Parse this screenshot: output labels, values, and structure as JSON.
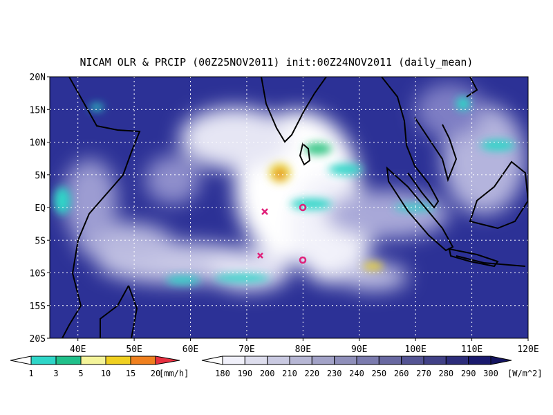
{
  "title": "NICAM OLR & PRCIP (00Z25NOV2011) init:00Z24NOV2011 (daily_mean)",
  "map": {
    "lat_labels": [
      "20N",
      "15N",
      "10N",
      "5N",
      "EQ",
      "5S",
      "10S",
      "15S",
      "20S"
    ],
    "lon_labels": [
      "40E",
      "50E",
      "60E",
      "70E",
      "80E",
      "90E",
      "100E",
      "110E",
      "120E"
    ]
  },
  "precip_legend": {
    "labels": [
      "1",
      "3",
      "5",
      "10",
      "15",
      "20"
    ],
    "unit": "[mm/h]"
  },
  "olr_legend": {
    "labels": [
      "180",
      "190",
      "200",
      "210",
      "220",
      "230",
      "240",
      "250",
      "260",
      "270",
      "280",
      "290",
      "300"
    ],
    "unit": "[W/m^2]"
  }
}
